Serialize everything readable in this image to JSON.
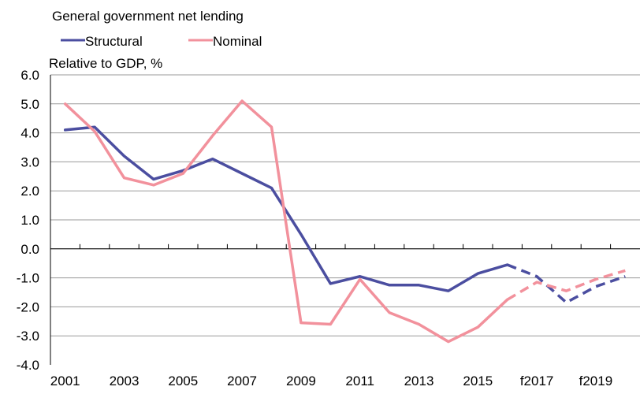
{
  "chart_data": {
    "type": "line",
    "title": "General government net lending",
    "ylabel": "Relative to GDP, %",
    "xlabel": "",
    "ylim": [
      -4.0,
      6.0
    ],
    "ytick_labels": [
      "6.0",
      "5.0",
      "4.0",
      "3.0",
      "2.0",
      "1.0",
      "0.0",
      "-1.0",
      "-2.0",
      "-3.0",
      "-4.0"
    ],
    "xtick_labels": [
      "2001",
      "2003",
      "2005",
      "2007",
      "2009",
      "2011",
      "2013",
      "2015",
      "f2017",
      "f2019"
    ],
    "grid": true,
    "legend": "top",
    "categories": [
      "2001",
      "2002",
      "2003",
      "2004",
      "2005",
      "2006",
      "2007",
      "2008",
      "2009",
      "2010",
      "2011",
      "2012",
      "2013",
      "2014",
      "2015",
      "2016",
      "f2017",
      "f2018",
      "f2019",
      "f2020"
    ],
    "forecast_start": "2016",
    "series": [
      {
        "name": "Structural",
        "color": "#4b4ea0",
        "values": [
          4.1,
          4.2,
          3.2,
          2.4,
          2.7,
          3.1,
          2.6,
          2.1,
          0.5,
          -1.2,
          -0.95,
          -1.25,
          -1.25,
          -1.45,
          -0.85,
          -0.55,
          -0.95,
          -1.85,
          -1.3,
          -0.95
        ]
      },
      {
        "name": "Nominal",
        "color": "#f2919c",
        "values": [
          5.0,
          4.05,
          2.45,
          2.2,
          2.6,
          3.9,
          5.1,
          4.2,
          -2.55,
          -2.6,
          -1.05,
          -2.2,
          -2.6,
          -3.2,
          -2.7,
          -1.75,
          -1.15,
          -1.45,
          -1.05,
          -0.75
        ]
      }
    ]
  }
}
